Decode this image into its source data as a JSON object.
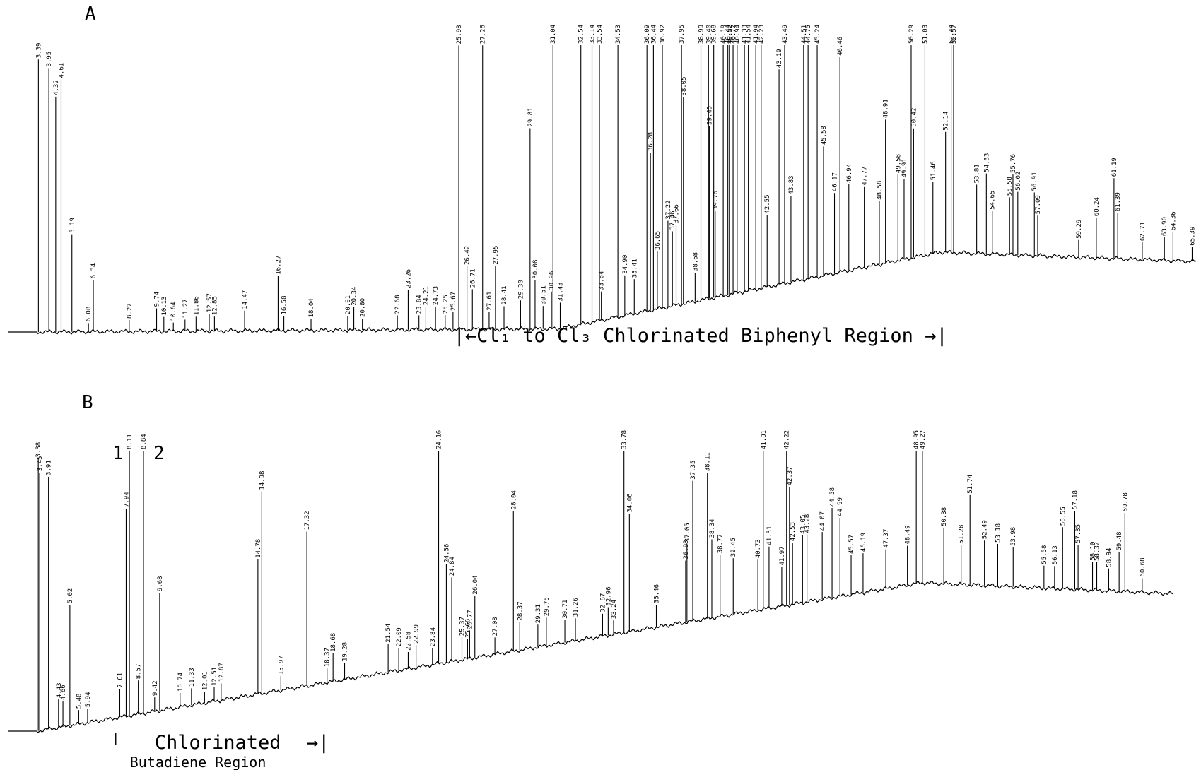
{
  "chart_data": [
    {
      "type": "line",
      "panel": "A",
      "x_range": [
        3.3,
        65.6
      ],
      "region_annotation": {
        "text": "|←Cl₁ to Cl₃ Chlorinated Biphenyl Region →|",
        "from": 25.7,
        "to": 52.8
      },
      "peaks": [
        {
          "t": 3.39,
          "h": 0.95
        },
        {
          "t": 3.95,
          "h": 0.92
        },
        {
          "t": 4.32,
          "h": 0.82
        },
        {
          "t": 4.61,
          "h": 0.88
        },
        {
          "t": 5.19,
          "h": 0.34
        },
        {
          "t": 6.34,
          "h": 0.18
        },
        {
          "t": 6.08,
          "h": 0.03
        },
        {
          "t": 8.27,
          "h": 0.04
        },
        {
          "t": 9.74,
          "h": 0.08
        },
        {
          "t": 10.13,
          "h": 0.05
        },
        {
          "t": 10.64,
          "h": 0.03
        },
        {
          "t": 11.27,
          "h": 0.04
        },
        {
          "t": 11.86,
          "h": 0.05
        },
        {
          "t": 12.57,
          "h": 0.06
        },
        {
          "t": 12.85,
          "h": 0.05
        },
        {
          "t": 14.47,
          "h": 0.07
        },
        {
          "t": 16.27,
          "h": 0.19
        },
        {
          "t": 16.58,
          "h": 0.05
        },
        {
          "t": 18.04,
          "h": 0.04
        },
        {
          "t": 20.01,
          "h": 0.05
        },
        {
          "t": 20.34,
          "h": 0.08
        },
        {
          "t": 20.8,
          "h": 0.04
        },
        {
          "t": 22.68,
          "h": 0.05
        },
        {
          "t": 23.26,
          "h": 0.14
        },
        {
          "t": 23.84,
          "h": 0.05
        },
        {
          "t": 24.21,
          "h": 0.08
        },
        {
          "t": 24.73,
          "h": 0.08
        },
        {
          "t": 25.25,
          "h": 0.05
        },
        {
          "t": 25.67,
          "h": 0.06
        },
        {
          "t": 25.98,
          "h": 0.99
        },
        {
          "t": 26.42,
          "h": 0.22
        },
        {
          "t": 26.71,
          "h": 0.14
        },
        {
          "t": 27.26,
          "h": 0.99
        },
        {
          "t": 27.61,
          "h": 0.06
        },
        {
          "t": 27.95,
          "h": 0.22
        },
        {
          "t": 28.41,
          "h": 0.08
        },
        {
          "t": 29.3,
          "h": 0.1
        },
        {
          "t": 29.81,
          "h": 0.7
        },
        {
          "t": 30.08,
          "h": 0.17
        },
        {
          "t": 30.51,
          "h": 0.08
        },
        {
          "t": 30.96,
          "h": 0.13
        },
        {
          "t": 31.04,
          "h": 0.99
        },
        {
          "t": 31.43,
          "h": 0.09
        },
        {
          "t": 32.54,
          "h": 0.99
        },
        {
          "t": 33.14,
          "h": 0.99
        },
        {
          "t": 33.54,
          "h": 0.99
        },
        {
          "t": 33.64,
          "h": 0.1
        },
        {
          "t": 34.53,
          "h": 0.99
        },
        {
          "t": 34.9,
          "h": 0.14
        },
        {
          "t": 35.41,
          "h": 0.12
        },
        {
          "t": 36.09,
          "h": 0.99
        },
        {
          "t": 36.28,
          "h": 0.55
        },
        {
          "t": 36.44,
          "h": 0.99
        },
        {
          "t": 36.65,
          "h": 0.2
        },
        {
          "t": 36.92,
          "h": 0.99
        },
        {
          "t": 37.22,
          "h": 0.3
        },
        {
          "t": 37.46,
          "h": 0.26
        },
        {
          "t": 37.66,
          "h": 0.28
        },
        {
          "t": 37.95,
          "h": 0.99
        },
        {
          "t": 38.05,
          "h": 0.72
        },
        {
          "t": 38.68,
          "h": 0.1
        },
        {
          "t": 38.99,
          "h": 0.99
        },
        {
          "t": 39.4,
          "h": 0.99
        },
        {
          "t": 39.68,
          "h": 0.99
        },
        {
          "t": 39.45,
          "h": 0.6
        },
        {
          "t": 39.76,
          "h": 0.3
        },
        {
          "t": 40.19,
          "h": 0.99
        },
        {
          "t": 40.44,
          "h": 0.99
        },
        {
          "t": 40.52,
          "h": 0.99
        },
        {
          "t": 40.72,
          "h": 0.99
        },
        {
          "t": 40.94,
          "h": 0.99
        },
        {
          "t": 41.33,
          "h": 0.99
        },
        {
          "t": 41.54,
          "h": 0.99
        },
        {
          "t": 41.94,
          "h": 0.99
        },
        {
          "t": 42.23,
          "h": 0.99
        },
        {
          "t": 42.55,
          "h": 0.25
        },
        {
          "t": 43.19,
          "h": 0.75
        },
        {
          "t": 43.49,
          "h": 0.99
        },
        {
          "t": 43.83,
          "h": 0.3
        },
        {
          "t": 44.51,
          "h": 0.99
        },
        {
          "t": 44.75,
          "h": 0.99
        },
        {
          "t": 45.24,
          "h": 0.99
        },
        {
          "t": 45.58,
          "h": 0.45
        },
        {
          "t": 46.17,
          "h": 0.28
        },
        {
          "t": 46.46,
          "h": 0.75
        },
        {
          "t": 46.94,
          "h": 0.3
        },
        {
          "t": 47.77,
          "h": 0.28
        },
        {
          "t": 48.58,
          "h": 0.22
        },
        {
          "t": 48.91,
          "h": 0.5
        },
        {
          "t": 49.58,
          "h": 0.3
        },
        {
          "t": 49.91,
          "h": 0.28
        },
        {
          "t": 50.29,
          "h": 0.82
        },
        {
          "t": 50.42,
          "h": 0.45
        },
        {
          "t": 51.03,
          "h": 0.75
        },
        {
          "t": 51.46,
          "h": 0.25
        },
        {
          "t": 52.14,
          "h": 0.42
        },
        {
          "t": 52.44,
          "h": 0.8
        },
        {
          "t": 52.57,
          "h": 0.99
        },
        {
          "t": 53.81,
          "h": 0.24
        },
        {
          "t": 54.33,
          "h": 0.28
        },
        {
          "t": 54.65,
          "h": 0.15
        },
        {
          "t": 55.58,
          "h": 0.2
        },
        {
          "t": 55.76,
          "h": 0.28
        },
        {
          "t": 56.02,
          "h": 0.22
        },
        {
          "t": 56.91,
          "h": 0.22
        },
        {
          "t": 57.09,
          "h": 0.14
        },
        {
          "t": 59.29,
          "h": 0.06
        },
        {
          "t": 60.24,
          "h": 0.14
        },
        {
          "t": 61.19,
          "h": 0.28
        },
        {
          "t": 61.39,
          "h": 0.16
        },
        {
          "t": 62.71,
          "h": 0.06
        },
        {
          "t": 63.9,
          "h": 0.08
        },
        {
          "t": 64.36,
          "h": 0.1
        },
        {
          "t": 65.39,
          "h": 0.05
        }
      ]
    },
    {
      "type": "line",
      "panel": "B",
      "x_range": [
        3.3,
        62.3
      ],
      "peak_markers": [
        "1",
        "2"
      ],
      "region_annotation": {
        "line1": "Chlorinated",
        "line2": "Butadiene Region",
        "arrow_right": "→|",
        "from": 7.4,
        "to": 17.9
      },
      "peaks": [
        {
          "t": 3.38,
          "h": 0.97
        },
        {
          "t": 3.45,
          "h": 0.92
        },
        {
          "t": 3.91,
          "h": 0.9
        },
        {
          "t": 4.43,
          "h": 0.1
        },
        {
          "t": 4.66,
          "h": 0.09
        },
        {
          "t": 5.02,
          "h": 0.43
        },
        {
          "t": 5.48,
          "h": 0.05
        },
        {
          "t": 5.94,
          "h": 0.05
        },
        {
          "t": 7.61,
          "h": 0.1
        },
        {
          "t": 7.94,
          "h": 0.74
        },
        {
          "t": 8.11,
          "h": 0.97
        },
        {
          "t": 8.57,
          "h": 0.12
        },
        {
          "t": 8.84,
          "h": 0.97
        },
        {
          "t": 9.42,
          "h": 0.05
        },
        {
          "t": 9.68,
          "h": 0.42
        },
        {
          "t": 10.74,
          "h": 0.05
        },
        {
          "t": 11.33,
          "h": 0.06
        },
        {
          "t": 12.01,
          "h": 0.04
        },
        {
          "t": 12.51,
          "h": 0.05
        },
        {
          "t": 12.87,
          "h": 0.06
        },
        {
          "t": 14.78,
          "h": 0.48
        },
        {
          "t": 14.98,
          "h": 0.72
        },
        {
          "t": 15.97,
          "h": 0.05
        },
        {
          "t": 17.32,
          "h": 0.55
        },
        {
          "t": 18.37,
          "h": 0.05
        },
        {
          "t": 18.68,
          "h": 0.1
        },
        {
          "t": 19.28,
          "h": 0.06
        },
        {
          "t": 21.54,
          "h": 0.1
        },
        {
          "t": 22.09,
          "h": 0.08
        },
        {
          "t": 22.58,
          "h": 0.06
        },
        {
          "t": 22.99,
          "h": 0.08
        },
        {
          "t": 23.84,
          "h": 0.06
        },
        {
          "t": 24.16,
          "h": 0.92
        },
        {
          "t": 24.56,
          "h": 0.35
        },
        {
          "t": 24.84,
          "h": 0.3
        },
        {
          "t": 25.37,
          "h": 0.08
        },
        {
          "t": 25.66,
          "h": 0.07
        },
        {
          "t": 25.77,
          "h": 0.1
        },
        {
          "t": 26.04,
          "h": 0.22
        },
        {
          "t": 27.08,
          "h": 0.06
        },
        {
          "t": 28.04,
          "h": 0.5
        },
        {
          "t": 28.37,
          "h": 0.1
        },
        {
          "t": 29.31,
          "h": 0.08
        },
        {
          "t": 29.75,
          "h": 0.1
        },
        {
          "t": 30.71,
          "h": 0.08
        },
        {
          "t": 31.26,
          "h": 0.08
        },
        {
          "t": 32.67,
          "h": 0.08
        },
        {
          "t": 32.96,
          "h": 0.1
        },
        {
          "t": 33.24,
          "h": 0.05
        },
        {
          "t": 33.78,
          "h": 0.94
        },
        {
          "t": 34.06,
          "h": 0.42
        },
        {
          "t": 35.46,
          "h": 0.08
        },
        {
          "t": 36.98,
          "h": 0.22
        },
        {
          "t": 37.05,
          "h": 0.28
        },
        {
          "t": 37.35,
          "h": 0.5
        },
        {
          "t": 38.11,
          "h": 0.52
        },
        {
          "t": 38.34,
          "h": 0.28
        },
        {
          "t": 38.77,
          "h": 0.22
        },
        {
          "t": 39.45,
          "h": 0.2
        },
        {
          "t": 40.73,
          "h": 0.18
        },
        {
          "t": 41.01,
          "h": 0.95
        },
        {
          "t": 41.31,
          "h": 0.22
        },
        {
          "t": 41.97,
          "h": 0.14
        },
        {
          "t": 42.22,
          "h": 0.95
        },
        {
          "t": 42.37,
          "h": 0.42
        },
        {
          "t": 42.53,
          "h": 0.22
        },
        {
          "t": 43.05,
          "h": 0.24
        },
        {
          "t": 43.28,
          "h": 0.24
        },
        {
          "t": 44.07,
          "h": 0.24
        },
        {
          "t": 44.58,
          "h": 0.32
        },
        {
          "t": 44.99,
          "h": 0.28
        },
        {
          "t": 45.57,
          "h": 0.14
        },
        {
          "t": 46.19,
          "h": 0.14
        },
        {
          "t": 47.37,
          "h": 0.14
        },
        {
          "t": 48.49,
          "h": 0.14
        },
        {
          "t": 48.95,
          "h": 0.7
        },
        {
          "t": 49.27,
          "h": 0.58
        },
        {
          "t": 50.38,
          "h": 0.2
        },
        {
          "t": 51.28,
          "h": 0.14
        },
        {
          "t": 51.74,
          "h": 0.32
        },
        {
          "t": 52.49,
          "h": 0.16
        },
        {
          "t": 53.18,
          "h": 0.15
        },
        {
          "t": 53.98,
          "h": 0.14
        },
        {
          "t": 55.58,
          "h": 0.08
        },
        {
          "t": 56.13,
          "h": 0.08
        },
        {
          "t": 56.55,
          "h": 0.22
        },
        {
          "t": 57.18,
          "h": 0.28
        },
        {
          "t": 57.35,
          "h": 0.16
        },
        {
          "t": 58.1,
          "h": 0.1
        },
        {
          "t": 58.32,
          "h": 0.1
        },
        {
          "t": 58.94,
          "h": 0.08
        },
        {
          "t": 59.48,
          "h": 0.14
        },
        {
          "t": 59.78,
          "h": 0.28
        },
        {
          "t": 60.68,
          "h": 0.05
        }
      ]
    }
  ]
}
